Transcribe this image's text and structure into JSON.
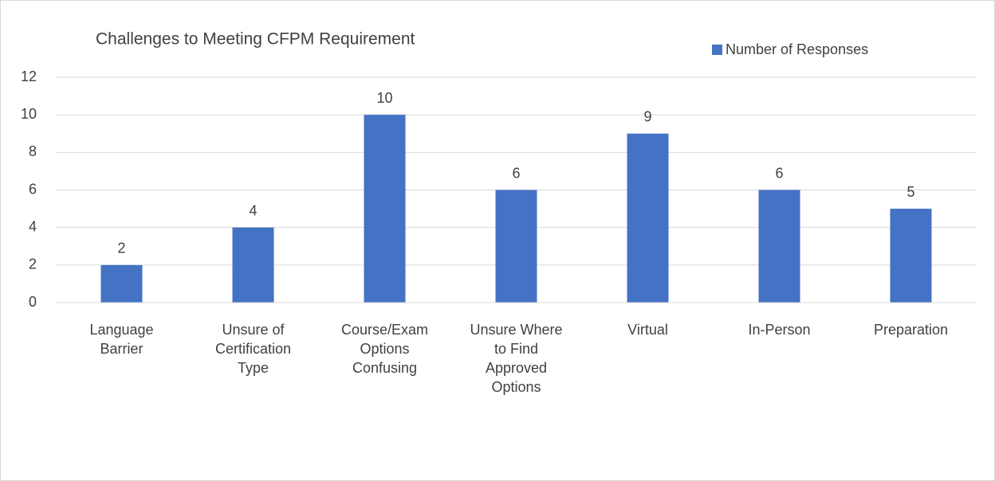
{
  "chart_data": {
    "type": "bar",
    "title": "Challenges to Meeting CFPM Requirement",
    "categories": [
      "Language Barrier",
      "Unsure of Certification Type",
      "Course/Exam Options Confusing",
      "Unsure Where to Find Approved Options",
      "Virtual",
      "In-Person",
      "Preparation"
    ],
    "series": [
      {
        "name": "Number of Responses",
        "color": "#4472c4",
        "values": [
          2,
          4,
          10,
          6,
          9,
          6,
          5
        ]
      }
    ],
    "ylim": [
      0,
      12
    ],
    "yticks": [
      0,
      2,
      4,
      6,
      8,
      10,
      12
    ],
    "grid": true,
    "legend": "top-right",
    "data_labels": true
  }
}
